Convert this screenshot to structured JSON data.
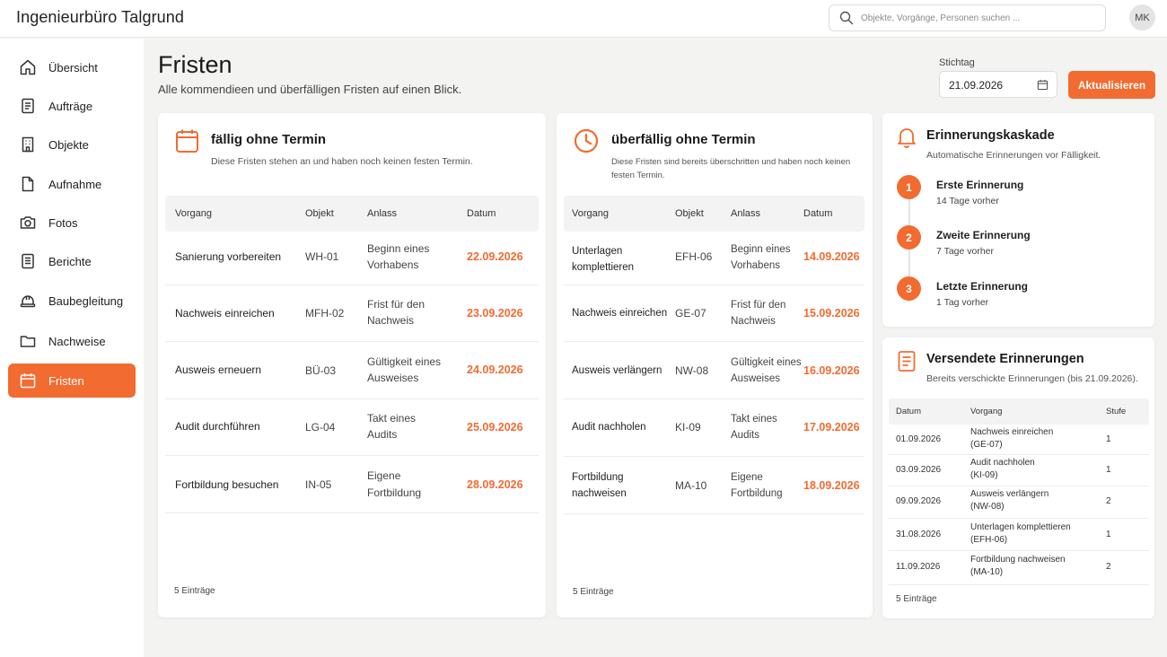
{
  "app": {
    "brand": "Ingenieurbüro Talgrund",
    "search_placeholder": "Objekte, Vorgänge, Personen suchen ...",
    "avatar_initials": "MK"
  },
  "sidebar": {
    "items": [
      {
        "label": "Übersicht",
        "icon": "home-icon"
      },
      {
        "label": "Aufträge",
        "icon": "document-icon"
      },
      {
        "label": "Objekte",
        "icon": "building-icon"
      },
      {
        "label": "Aufnahme",
        "icon": "file-icon"
      },
      {
        "label": "Fotos",
        "icon": "camera-icon"
      },
      {
        "label": "Berichte",
        "icon": "report-icon"
      },
      {
        "label": "Baubegleitung",
        "icon": "helmet-icon"
      },
      {
        "label": "Nachweise",
        "icon": "folder-icon"
      },
      {
        "label": "Fristen",
        "icon": "calendar-icon",
        "active": true
      }
    ]
  },
  "header": {
    "title": "Fristen",
    "subtitle": "Alle kommendieen und überfälligen Fristen auf einen Blick.",
    "stichtag_label": "Stichtag",
    "stichtag_value": "21.09.2026",
    "update_button": "Aktualisieren"
  },
  "due": {
    "title": "fällig ohne Termin",
    "description": "Diese Fristen stehen an und haben noch keinen festen Termin.",
    "columns": [
      "Vorgang",
      "Objekt",
      "Anlass",
      "Datum"
    ],
    "rows": [
      {
        "vorgang": "Sanierung vorbereiten",
        "objekt": "WH-01",
        "anlass_1": "Beginn eines",
        "anlass_2": "Vorhabens",
        "datum": "22.09.2026"
      },
      {
        "vorgang": "Nachweis einreichen",
        "objekt": "MFH-02",
        "anlass_1": "Frist für den",
        "anlass_2": "Nachweis",
        "datum": "23.09.2026"
      },
      {
        "vorgang": "Ausweis erneuern",
        "objekt": "BÜ-03",
        "anlass_1": "Gültigkeit eines",
        "anlass_2": "Ausweises",
        "datum": "24.09.2026"
      },
      {
        "vorgang": "Audit durchführen",
        "objekt": "LG-04",
        "anlass_1": "Takt eines",
        "anlass_2": "Audits",
        "datum": "25.09.2026"
      },
      {
        "vorgang": "Fortbildung besuchen",
        "objekt": "IN-05",
        "anlass_1": "Eigene",
        "anlass_2": "Fortbildung",
        "datum": "28.09.2026"
      }
    ],
    "count": "5 Einträge"
  },
  "overdue": {
    "title": "überfällig ohne Termin",
    "description_1": "Diese Fristen sind bereits überschritten und haben noch keinen",
    "description_2": "festen Termin.",
    "columns": [
      "Vorgang",
      "Objekt",
      "Anlass",
      "Datum"
    ],
    "rows": [
      {
        "vorgang_1": "Unterlagen",
        "vorgang_2": "komplettieren",
        "objekt": "EFH-06",
        "anlass_1": "Beginn eines",
        "anlass_2": "Vorhabens",
        "datum": "14.09.2026"
      },
      {
        "vorgang_1": "Nachweis einreichen",
        "vorgang_2": "",
        "objekt": "GE-07",
        "anlass_1": "Frist für den",
        "anlass_2": "Nachweis",
        "datum": "15.09.2026"
      },
      {
        "vorgang_1": "Ausweis verlängern",
        "vorgang_2": "",
        "objekt": "NW-08",
        "anlass_1": "Gültigkeit eines",
        "anlass_2": "Ausweises",
        "datum": "16.09.2026"
      },
      {
        "vorgang_1": "Audit nachholen",
        "vorgang_2": "",
        "objekt": "KI-09",
        "anlass_1": "Takt eines",
        "anlass_2": "Audits",
        "datum": "17.09.2026"
      },
      {
        "vorgang_1": "Fortbildung",
        "vorgang_2": "nachweisen",
        "objekt": "MA-10",
        "anlass_1": "Eigene",
        "anlass_2": "Fortbildung",
        "datum": "18.09.2026"
      }
    ],
    "count": "5 Einträge"
  },
  "cascade": {
    "title": "Erinnerungskaskade",
    "description": "Automatische Erinnerungen vor Fälligkeit.",
    "steps": [
      {
        "number": "1",
        "title": "Erste Erinnerung",
        "sub": "14 Tage vorher"
      },
      {
        "number": "2",
        "title": "Zweite Erinnerung",
        "sub": "7 Tage vorher"
      },
      {
        "number": "3",
        "title": "Letzte Erinnerung",
        "sub": "1 Tag vorher"
      }
    ]
  },
  "sent": {
    "title": "Versendete Erinnerungen",
    "description": "Bereits verschickte Erinnerungen (bis 21.09.2026).",
    "columns": [
      "Datum",
      "Vorgang",
      "Stufe"
    ],
    "rows": [
      {
        "datum": "01.09.2026",
        "vorgang_1": "Nachweis einreichen",
        "vorgang_2": "(GE-07)",
        "stufe": "1"
      },
      {
        "datum": "03.09.2026",
        "vorgang_1": "Audit nachholen",
        "vorgang_2": "(KI-09)",
        "stufe": "1"
      },
      {
        "datum": "09.09.2026",
        "vorgang_1": "Ausweis verlängern",
        "vorgang_2": "(NW-08)",
        "stufe": "2"
      },
      {
        "datum": "31.08.2026",
        "vorgang_1": "Unterlagen komplettieren",
        "vorgang_2": "(EFH-06)",
        "stufe": "1"
      },
      {
        "datum": "11.09.2026",
        "vorgang_1": "Fortbildung nachweisen",
        "vorgang_2": "(MA-10)",
        "stufe": "2"
      }
    ],
    "count": "5 Einträge"
  },
  "colors": {
    "accent": "#f26b30",
    "background": "#f3f3f2",
    "card": "#ffffff"
  }
}
